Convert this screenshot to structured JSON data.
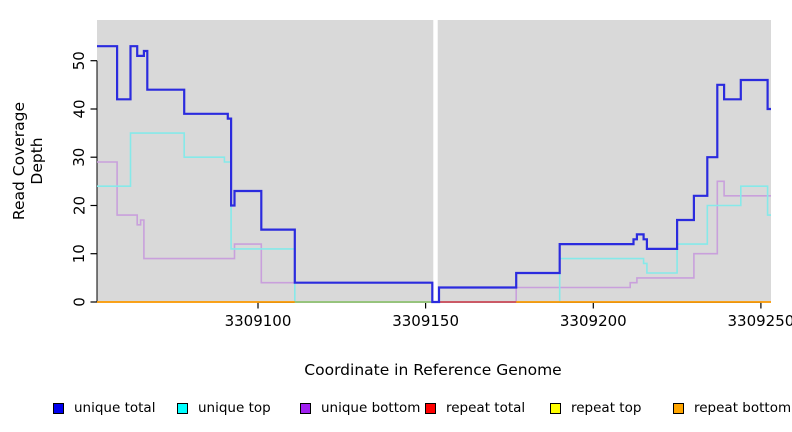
{
  "chart_data": {
    "type": "line",
    "subtype": "step-after-coverage-plot",
    "title": "",
    "xlabel": "Coordinate in Reference Genome",
    "ylabel": "Read Coverage Depth",
    "xlim": [
      3309052,
      3309253
    ],
    "ylim": [
      0,
      58
    ],
    "x_ticks": [
      3309100,
      3309150,
      3309200,
      3309250
    ],
    "y_ticks": [
      0,
      10,
      20,
      30,
      40,
      50
    ],
    "grid": false,
    "plot_background": "#d9d9d9",
    "gap_region": {
      "from": 3309152.3,
      "to": 3309153.6,
      "color": "#ffffff"
    },
    "legend_position": "bottom",
    "series": [
      {
        "name": "unique total",
        "line_color": "#2b2bde",
        "legend_color": "#0000ee",
        "points": [
          [
            3309052,
            53
          ],
          [
            3309058,
            42
          ],
          [
            3309062,
            53
          ],
          [
            3309064,
            51
          ],
          [
            3309066,
            52
          ],
          [
            3309067,
            44
          ],
          [
            3309078,
            39
          ],
          [
            3309091,
            38
          ],
          [
            3309092,
            20
          ],
          [
            3309093,
            23
          ],
          [
            3309101,
            15
          ],
          [
            3309111,
            4
          ],
          [
            3309152,
            0
          ],
          [
            3309154,
            3
          ],
          [
            3309177,
            6
          ],
          [
            3309190,
            12
          ],
          [
            3309212,
            13
          ],
          [
            3309213,
            14
          ],
          [
            3309215,
            13
          ],
          [
            3309216,
            11
          ],
          [
            3309225,
            17
          ],
          [
            3309230,
            22
          ],
          [
            3309234,
            30
          ],
          [
            3309237,
            45
          ],
          [
            3309239,
            42
          ],
          [
            3309244,
            46
          ],
          [
            3309252,
            40
          ],
          [
            3309253,
            40
          ]
        ]
      },
      {
        "name": "unique top",
        "line_color": "#86e9e9",
        "legend_color": "#00ffff",
        "points": [
          [
            3309052,
            24
          ],
          [
            3309062,
            35
          ],
          [
            3309078,
            30
          ],
          [
            3309090,
            29
          ],
          [
            3309092,
            11
          ],
          [
            3309111,
            0
          ],
          [
            3309190,
            9
          ],
          [
            3309215,
            8
          ],
          [
            3309216,
            6
          ],
          [
            3309225,
            12
          ],
          [
            3309234,
            20
          ],
          [
            3309244,
            24
          ],
          [
            3309252,
            18
          ],
          [
            3309253,
            18
          ]
        ]
      },
      {
        "name": "unique bottom",
        "line_color": "#c9a0dc",
        "legend_color": "#a020f0",
        "points": [
          [
            3309052,
            29
          ],
          [
            3309058,
            18
          ],
          [
            3309064,
            16
          ],
          [
            3309065,
            17
          ],
          [
            3309066,
            9
          ],
          [
            3309093,
            12
          ],
          [
            3309101,
            4
          ],
          [
            3309152,
            0
          ],
          [
            3309177,
            3
          ],
          [
            3309211,
            4
          ],
          [
            3309213,
            5
          ],
          [
            3309230,
            10
          ],
          [
            3309237,
            25
          ],
          [
            3309239,
            22
          ],
          [
            3309253,
            22
          ]
        ]
      },
      {
        "name": "repeat total",
        "line_color": "#dd2020",
        "legend_color": "#ff0000",
        "points": [
          [
            3309052,
            0
          ],
          [
            3309253,
            0
          ]
        ]
      },
      {
        "name": "repeat top",
        "line_color": "#e8e800",
        "legend_color": "#ffff00",
        "points": [
          [
            3309052,
            0
          ],
          [
            3309253,
            0
          ]
        ]
      },
      {
        "name": "repeat bottom",
        "line_color": "#ff9b0f",
        "legend_color": "#ffa500",
        "points": [
          [
            3309052,
            0
          ],
          [
            3309253,
            0
          ]
        ]
      }
    ],
    "zero_line_overlays": [
      {
        "color": "#8bc98b",
        "from": 3309111,
        "to": 3309152.3
      },
      {
        "color": "#c74f70",
        "from": 3309153.6,
        "to": 3309177
      }
    ]
  }
}
